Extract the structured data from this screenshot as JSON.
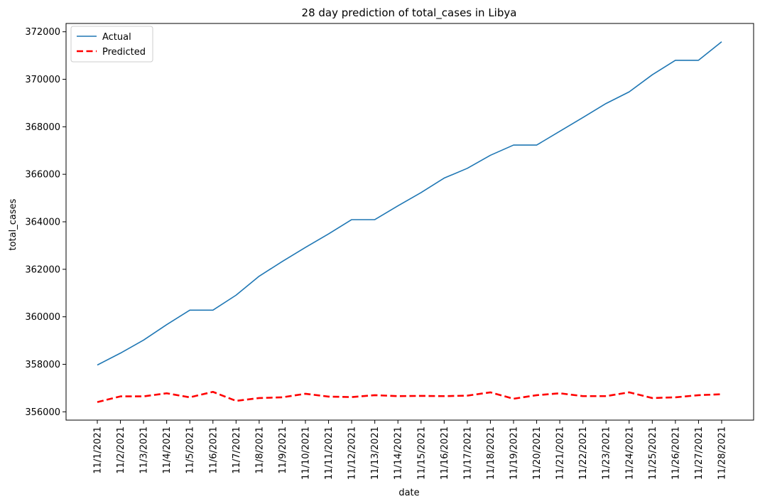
{
  "chart_data": {
    "type": "line",
    "title": "28 day prediction of total_cases in Libya",
    "xlabel": "date",
    "ylabel": "total_cases",
    "categories": [
      "11/1/2021",
      "11/2/2021",
      "11/3/2021",
      "11/4/2021",
      "11/5/2021",
      "11/6/2021",
      "11/7/2021",
      "11/8/2021",
      "11/9/2021",
      "11/10/2021",
      "11/11/2021",
      "11/12/2021",
      "11/13/2021",
      "11/14/2021",
      "11/15/2021",
      "11/16/2021",
      "11/17/2021",
      "11/18/2021",
      "11/19/2021",
      "11/20/2021",
      "11/21/2021",
      "11/22/2021",
      "11/23/2021",
      "11/24/2021",
      "11/25/2021",
      "11/26/2021",
      "11/27/2021",
      "11/28/2021"
    ],
    "ylim": [
      355650,
      372350
    ],
    "yticks": [
      356000,
      358000,
      360000,
      362000,
      364000,
      366000,
      368000,
      370000,
      372000
    ],
    "series": [
      {
        "name": "Actual",
        "color": "#1f77b4",
        "dash": "solid",
        "values": [
          357970,
          358470,
          359020,
          359670,
          360280,
          360280,
          360910,
          361710,
          362330,
          362920,
          363490,
          364090,
          364090,
          364670,
          365230,
          365840,
          366250,
          366800,
          367230,
          367230,
          367810,
          368390,
          368980,
          369470,
          370190,
          370800,
          370800,
          371580
        ]
      },
      {
        "name": "Predicted",
        "color": "#ff0000",
        "dash": "dashed",
        "values": [
          356410,
          356650,
          356650,
          356780,
          356610,
          356840,
          356460,
          356580,
          356610,
          356760,
          356640,
          356620,
          356700,
          356660,
          356670,
          356660,
          356680,
          356820,
          356550,
          356700,
          356780,
          356660,
          356660,
          356820,
          356580,
          356610,
          356700,
          356740
        ]
      }
    ],
    "grid": false,
    "legend_position": "top-left"
  }
}
